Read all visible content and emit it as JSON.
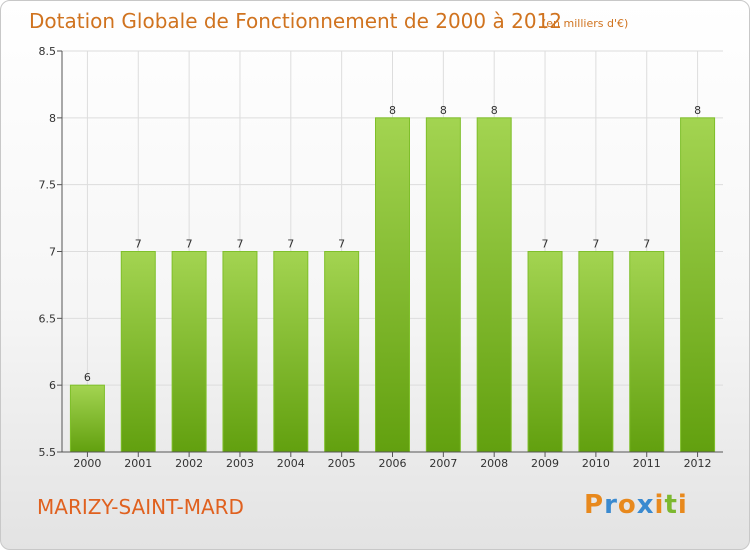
{
  "header": {
    "title": "Dotation Globale de Fonctionnement de 2000 à 2012",
    "unit": "(en milliers d'€)"
  },
  "footer": {
    "town": "MARIZY-SAINT-MARD",
    "logo": "Proxiti",
    "logo_colors": [
      "#e8891d",
      "#3a8ad0",
      "#e8891d",
      "#3a8ad0",
      "#e8891d",
      "#7cb82f",
      "#e8891d"
    ]
  },
  "colors": {
    "bar_light": "#a3d451",
    "bar_dark": "#62a00f",
    "bar_border": "#7fbf2a",
    "grid": "#dddddd",
    "axis": "#555555",
    "text_orange": "#d0731f"
  },
  "chart_data": {
    "type": "bar",
    "title": "Dotation Globale de Fonctionnement de 2000 à 2012",
    "xlabel": "",
    "ylabel": "",
    "categories": [
      "2000",
      "2001",
      "2002",
      "2003",
      "2004",
      "2005",
      "2006",
      "2007",
      "2008",
      "2009",
      "2010",
      "2011",
      "2012"
    ],
    "values": [
      6,
      7,
      7,
      7,
      7,
      7,
      8,
      8,
      8,
      7,
      7,
      7,
      8
    ],
    "data_labels": [
      "6",
      "7",
      "7",
      "7",
      "7",
      "7",
      "8",
      "8",
      "8",
      "7",
      "7",
      "7",
      "8"
    ],
    "ylim": [
      5.5,
      8.5
    ],
    "yticks": [
      5.5,
      6,
      6.5,
      7,
      7.5,
      8,
      8.5
    ],
    "ytick_labels": [
      "5.5",
      "6",
      "6.5",
      "7",
      "7.5",
      "8",
      "8.5"
    ],
    "grid": true,
    "legend": "none"
  }
}
